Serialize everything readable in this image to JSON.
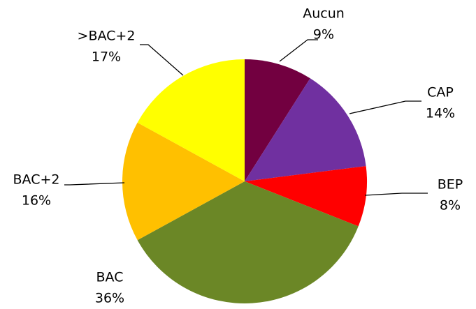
{
  "chart_data": {
    "type": "pie",
    "categories": [
      "Aucun",
      "CAP",
      "BEP",
      "BAC",
      "BAC+2",
      ">BAC+2"
    ],
    "values": [
      9,
      14,
      8,
      36,
      16,
      17
    ],
    "value_labels": [
      "9%",
      "14%",
      "8%",
      "36%",
      "16%",
      "17%"
    ],
    "colors": [
      "#720040",
      "#7030a0",
      "#ff0000",
      "#6b8726",
      "#ffc000",
      "#ffff00"
    ]
  }
}
